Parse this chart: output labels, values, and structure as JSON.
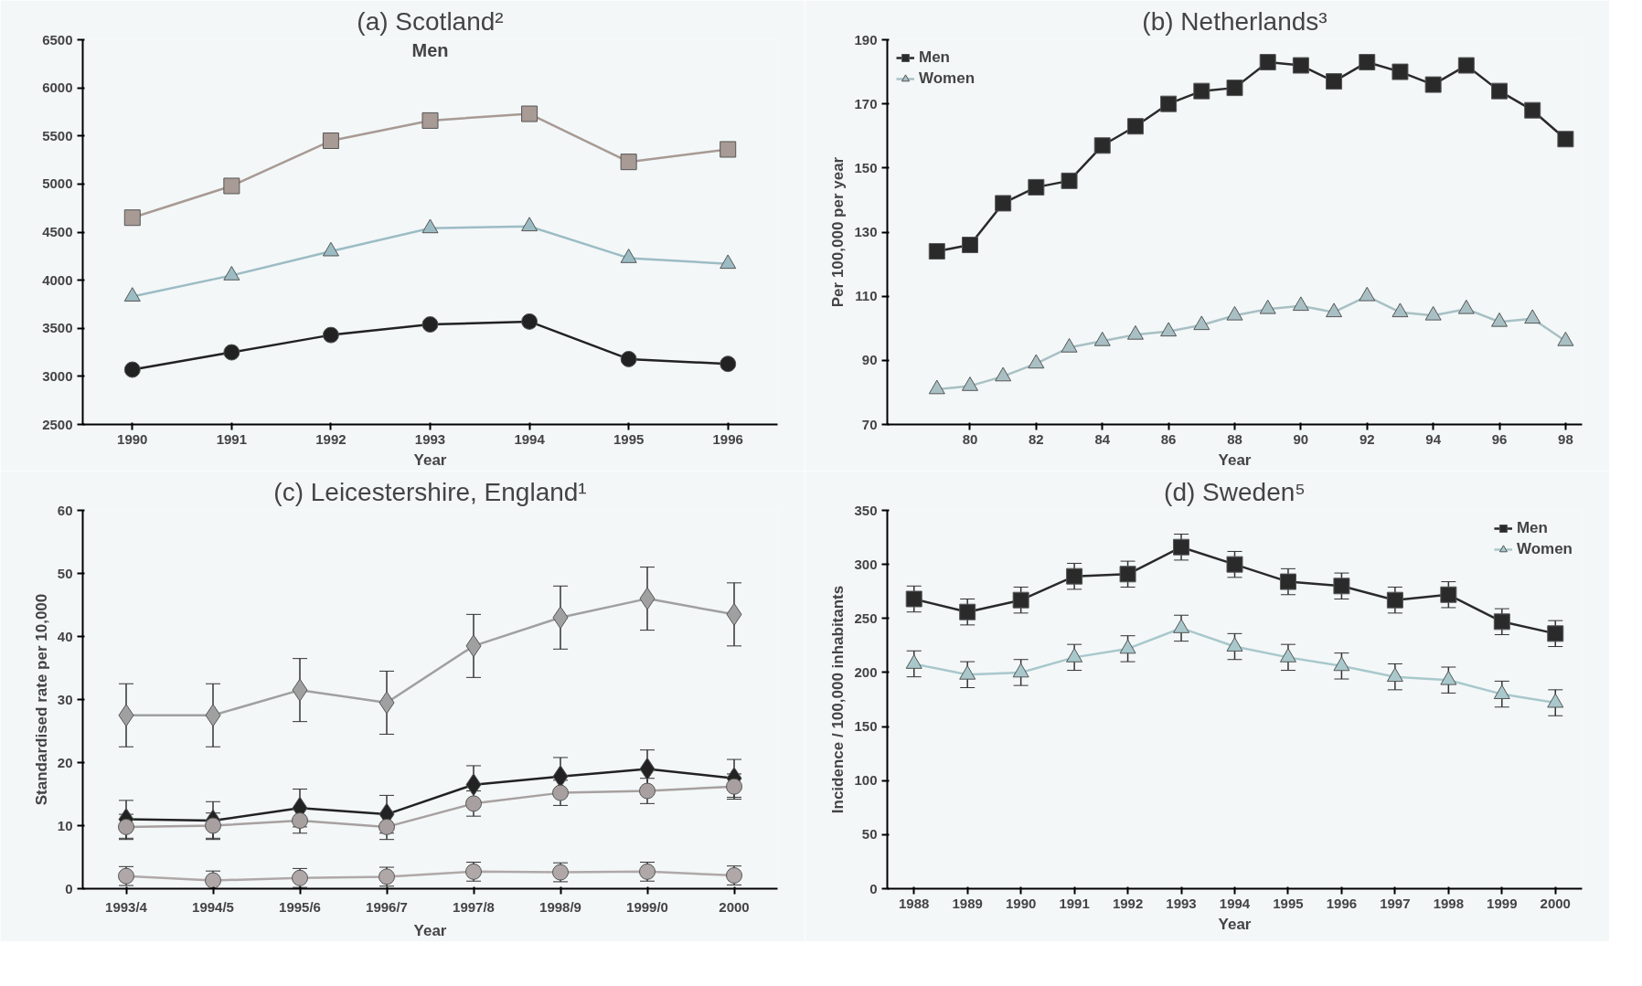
{
  "chart_data": [
    {
      "type": "line",
      "title": "(a) Scotland²",
      "xlabel": "Year",
      "annotations": [
        "Men"
      ],
      "categories": [
        "1990",
        "1991",
        "1992",
        "1993",
        "1994",
        "1995",
        "1996"
      ],
      "ylim": [
        2500,
        6500
      ],
      "yticks": [
        2500,
        3000,
        3500,
        4000,
        4500,
        5000,
        5500,
        6000,
        6500
      ],
      "grid": false,
      "legend": false,
      "series": [
        {
          "color": "#a89a94",
          "marker": "square",
          "values": [
            4650,
            4980,
            5450,
            5660,
            5730,
            5230,
            5360
          ]
        },
        {
          "color": "#9cbcc4",
          "marker": "triangle",
          "values": [
            3830,
            4050,
            4300,
            4540,
            4560,
            4230,
            4170
          ]
        },
        {
          "color": "#222222",
          "marker": "circle",
          "values": [
            3070,
            3250,
            3430,
            3540,
            3570,
            3180,
            3130
          ]
        }
      ]
    },
    {
      "type": "line",
      "title": "(b) Netherlands³",
      "xlabel": "Year",
      "ylabel": "Per 100,000 per year",
      "x": [
        79,
        80,
        81,
        82,
        83,
        84,
        85,
        86,
        87,
        88,
        89,
        90,
        91,
        92,
        93,
        94,
        95,
        96,
        97,
        98
      ],
      "xlim": [
        77.5,
        98.5
      ],
      "xticks": [
        80,
        82,
        84,
        86,
        88,
        90,
        92,
        94,
        96,
        98
      ],
      "ylim": [
        70,
        190
      ],
      "yticks": [
        70,
        90,
        110,
        130,
        150,
        170,
        190
      ],
      "grid": false,
      "legend": "top left",
      "series": [
        {
          "name": "Men",
          "color": "#2a2a2a",
          "marker": "square",
          "values": [
            124,
            126,
            139,
            144,
            146,
            157,
            163,
            170,
            174,
            175,
            183,
            182,
            177,
            183,
            180,
            176,
            182,
            174,
            168,
            159
          ]
        },
        {
          "name": "Women",
          "color": "#a8c0c4",
          "marker": "triangle",
          "values": [
            81,
            82,
            85,
            89,
            94,
            96,
            98,
            99,
            101,
            104,
            106,
            107,
            105,
            110,
            105,
            104,
            106,
            102,
            103,
            96
          ]
        }
      ]
    },
    {
      "type": "line",
      "title": "(c) Leicestershire, England¹",
      "xlabel": "Year",
      "ylabel": "Standardised rate per 10,000",
      "categories": [
        "1993/4",
        "1994/5",
        "1995/6",
        "1996/7",
        "1997/8",
        "1998/9",
        "1999/0",
        "2000"
      ],
      "ylim": [
        0,
        60
      ],
      "yticks": [
        0,
        10,
        20,
        30,
        40,
        50,
        60
      ],
      "grid": false,
      "legend": false,
      "series": [
        {
          "color": "#a0a0a0",
          "marker": "diamond",
          "values": [
            27.5,
            27.5,
            31.5,
            29.5,
            38.5,
            43,
            46,
            43.5
          ],
          "errors": [
            5,
            5,
            5,
            5,
            5,
            5,
            5,
            5
          ]
        },
        {
          "color": "#222222",
          "marker": "diamond",
          "values": [
            11,
            10.8,
            12.8,
            11.8,
            16.5,
            17.8,
            19,
            17.5
          ],
          "errors": [
            3,
            3,
            3,
            3,
            3,
            3,
            3,
            3
          ]
        },
        {
          "color": "#a8a0a0",
          "marker": "circle",
          "values": [
            9.8,
            10,
            10.8,
            9.8,
            13.5,
            15.2,
            15.5,
            16.2
          ],
          "errors": [
            2,
            2,
            2,
            2,
            2,
            2,
            2,
            2
          ]
        },
        {
          "color": "#b0a8a8",
          "marker": "circle",
          "values": [
            2,
            1.3,
            1.7,
            1.9,
            2.7,
            2.6,
            2.7,
            2.1
          ],
          "errors": [
            1.5,
            1.5,
            1.5,
            1.5,
            1.5,
            1.5,
            1.5,
            1.5
          ]
        }
      ]
    },
    {
      "type": "line",
      "title": "(d) Sweden⁵",
      "xlabel": "Year",
      "ylabel": "Incidence / 100,000 inhabitants",
      "categories": [
        "1988",
        "1989",
        "1990",
        "1991",
        "1992",
        "1993",
        "1994",
        "1995",
        "1996",
        "1997",
        "1998",
        "1999",
        "2000"
      ],
      "ylim": [
        0,
        350
      ],
      "yticks": [
        0,
        50,
        100,
        150,
        200,
        250,
        300,
        350
      ],
      "grid": false,
      "legend": "top right",
      "series": [
        {
          "name": "Men",
          "color": "#2a2a2a",
          "marker": "square",
          "values": [
            268,
            256,
            267,
            289,
            291,
            316,
            300,
            284,
            280,
            267,
            272,
            247,
            236
          ],
          "errors": [
            12,
            12,
            12,
            12,
            12,
            12,
            12,
            12,
            12,
            12,
            12,
            12,
            12
          ]
        },
        {
          "name": "Women",
          "color": "#a8c8cc",
          "marker": "triangle",
          "values": [
            208,
            198,
            200,
            214,
            222,
            241,
            224,
            214,
            206,
            196,
            193,
            180,
            172
          ],
          "errors": [
            12,
            12,
            12,
            12,
            12,
            12,
            12,
            12,
            12,
            12,
            12,
            12,
            12
          ]
        }
      ]
    }
  ]
}
